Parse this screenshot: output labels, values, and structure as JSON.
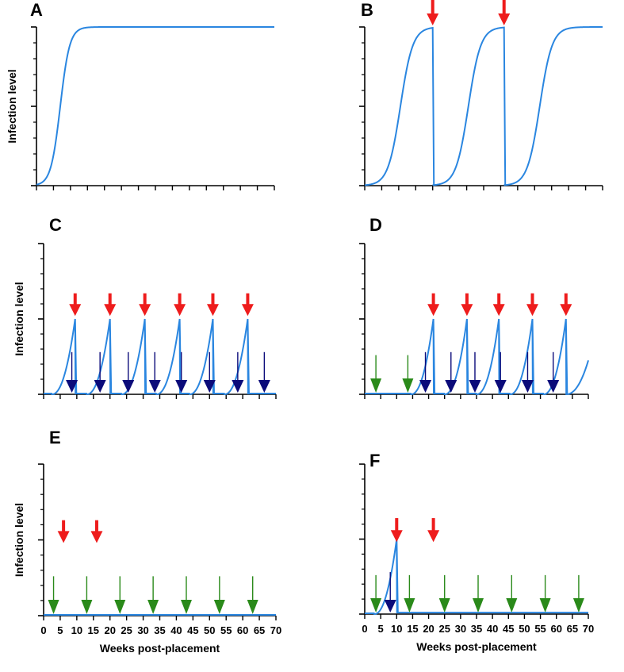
{
  "figure": {
    "xlabel": "Weeks post-placement",
    "ylabel": "Infection level"
  },
  "colors": {
    "curve": "#2a86e0",
    "axis": "#000000",
    "treatment_arrow": "#ee1c1c",
    "dark_arrow": "#0b0b7a",
    "green_arrow": "#2a8a1a"
  },
  "chart_data": [
    {
      "panel": "A",
      "type": "line",
      "xlabel": "",
      "ylabel": "Infection level",
      "xlim": [
        0,
        70
      ],
      "ylim": [
        0,
        1
      ],
      "xticks": [
        0,
        5,
        10,
        15,
        20,
        25,
        30,
        35,
        40,
        45,
        50,
        55,
        60,
        65,
        70
      ],
      "show_xtick_labels": false,
      "series": [
        {
          "name": "infection",
          "model": "logistic",
          "midpoint": 7,
          "rate": 0.72
        }
      ],
      "red_arrows": [],
      "dark_arrows": [],
      "green_arrows": []
    },
    {
      "panel": "B",
      "type": "line",
      "xlabel": "",
      "ylabel": "",
      "xlim": [
        0,
        70
      ],
      "ylim": [
        0,
        1
      ],
      "xticks": [
        0,
        5,
        10,
        15,
        20,
        25,
        30,
        35,
        40,
        45,
        50,
        55,
        60,
        65,
        70
      ],
      "show_xtick_labels": false,
      "series": [
        {
          "name": "infection",
          "model": "logistic-reset",
          "midpoint": 10.5,
          "rate": 0.55,
          "resets": [
            20,
            41
          ]
        }
      ],
      "red_arrows": [
        20,
        41
      ],
      "dark_arrows": [],
      "green_arrows": []
    },
    {
      "panel": "C",
      "type": "line",
      "xlabel": "",
      "ylabel": "Infection level",
      "xlim": [
        0,
        70
      ],
      "ylim": [
        0,
        1
      ],
      "xticks": [
        0,
        5,
        10,
        15,
        20,
        25,
        30,
        35,
        40,
        45,
        50,
        55,
        60,
        65,
        70
      ],
      "show_xtick_labels": false,
      "series": [
        {
          "name": "infection",
          "model": "sawtooth",
          "peak": 0.5,
          "peaks": [
            9.5,
            20,
            30.5,
            41,
            51,
            61.5
          ],
          "growth": 7
        }
      ],
      "red_arrows": [
        9.5,
        20,
        30.5,
        41,
        51,
        61.5
      ],
      "dark_arrows": [
        8.5,
        17,
        25.5,
        33.5,
        41.5,
        50,
        58.5,
        66.5
      ],
      "green_arrows": []
    },
    {
      "panel": "D",
      "type": "line",
      "xlabel": "",
      "ylabel": "",
      "xlim": [
        0,
        70
      ],
      "ylim": [
        0,
        1
      ],
      "xticks": [
        0,
        5,
        10,
        15,
        20,
        25,
        30,
        35,
        40,
        45,
        50,
        55,
        60,
        65,
        70
      ],
      "show_xtick_labels": false,
      "series": [
        {
          "name": "infection",
          "model": "sawtooth",
          "peak": 0.5,
          "peaks": [
            21.5,
            32,
            42,
            52.5,
            63
          ],
          "growth": 7
        }
      ],
      "red_arrows": [
        21.5,
        32,
        42,
        52.5,
        63
      ],
      "dark_arrows": [
        19,
        27,
        34.5,
        42.5,
        51,
        59
      ],
      "green_arrows": [
        3.5,
        13.5
      ]
    },
    {
      "panel": "E",
      "type": "line",
      "xlabel": "Weeks post-placement",
      "ylabel": "Infection level",
      "xlim": [
        0,
        70
      ],
      "ylim": [
        0,
        1
      ],
      "xticks": [
        0,
        5,
        10,
        15,
        20,
        25,
        30,
        35,
        40,
        45,
        50,
        55,
        60,
        65,
        70
      ],
      "show_xtick_labels": true,
      "series": [
        {
          "name": "infection",
          "model": "flat",
          "level": 0.005
        }
      ],
      "red_arrows": [
        6,
        16
      ],
      "dark_arrows": [],
      "green_arrows": [
        3,
        13,
        23,
        33,
        43,
        53,
        63
      ]
    },
    {
      "panel": "F",
      "type": "line",
      "xlabel": "Weeks post-placement",
      "ylabel": "",
      "xlim": [
        0,
        70
      ],
      "ylim": [
        0,
        1
      ],
      "xticks": [
        0,
        5,
        10,
        15,
        20,
        25,
        30,
        35,
        40,
        45,
        50,
        55,
        60,
        65,
        70
      ],
      "show_xtick_labels": true,
      "series": [
        {
          "name": "infection",
          "model": "sawtooth",
          "peak": 0.5,
          "peaks": [
            10
          ],
          "growth": 7,
          "baseline_after": 0.01
        }
      ],
      "red_arrows": [
        10,
        21.5
      ],
      "dark_arrows": [
        8
      ],
      "green_arrows": [
        3.5,
        14,
        25,
        35.5,
        46,
        56.5,
        67
      ]
    }
  ]
}
